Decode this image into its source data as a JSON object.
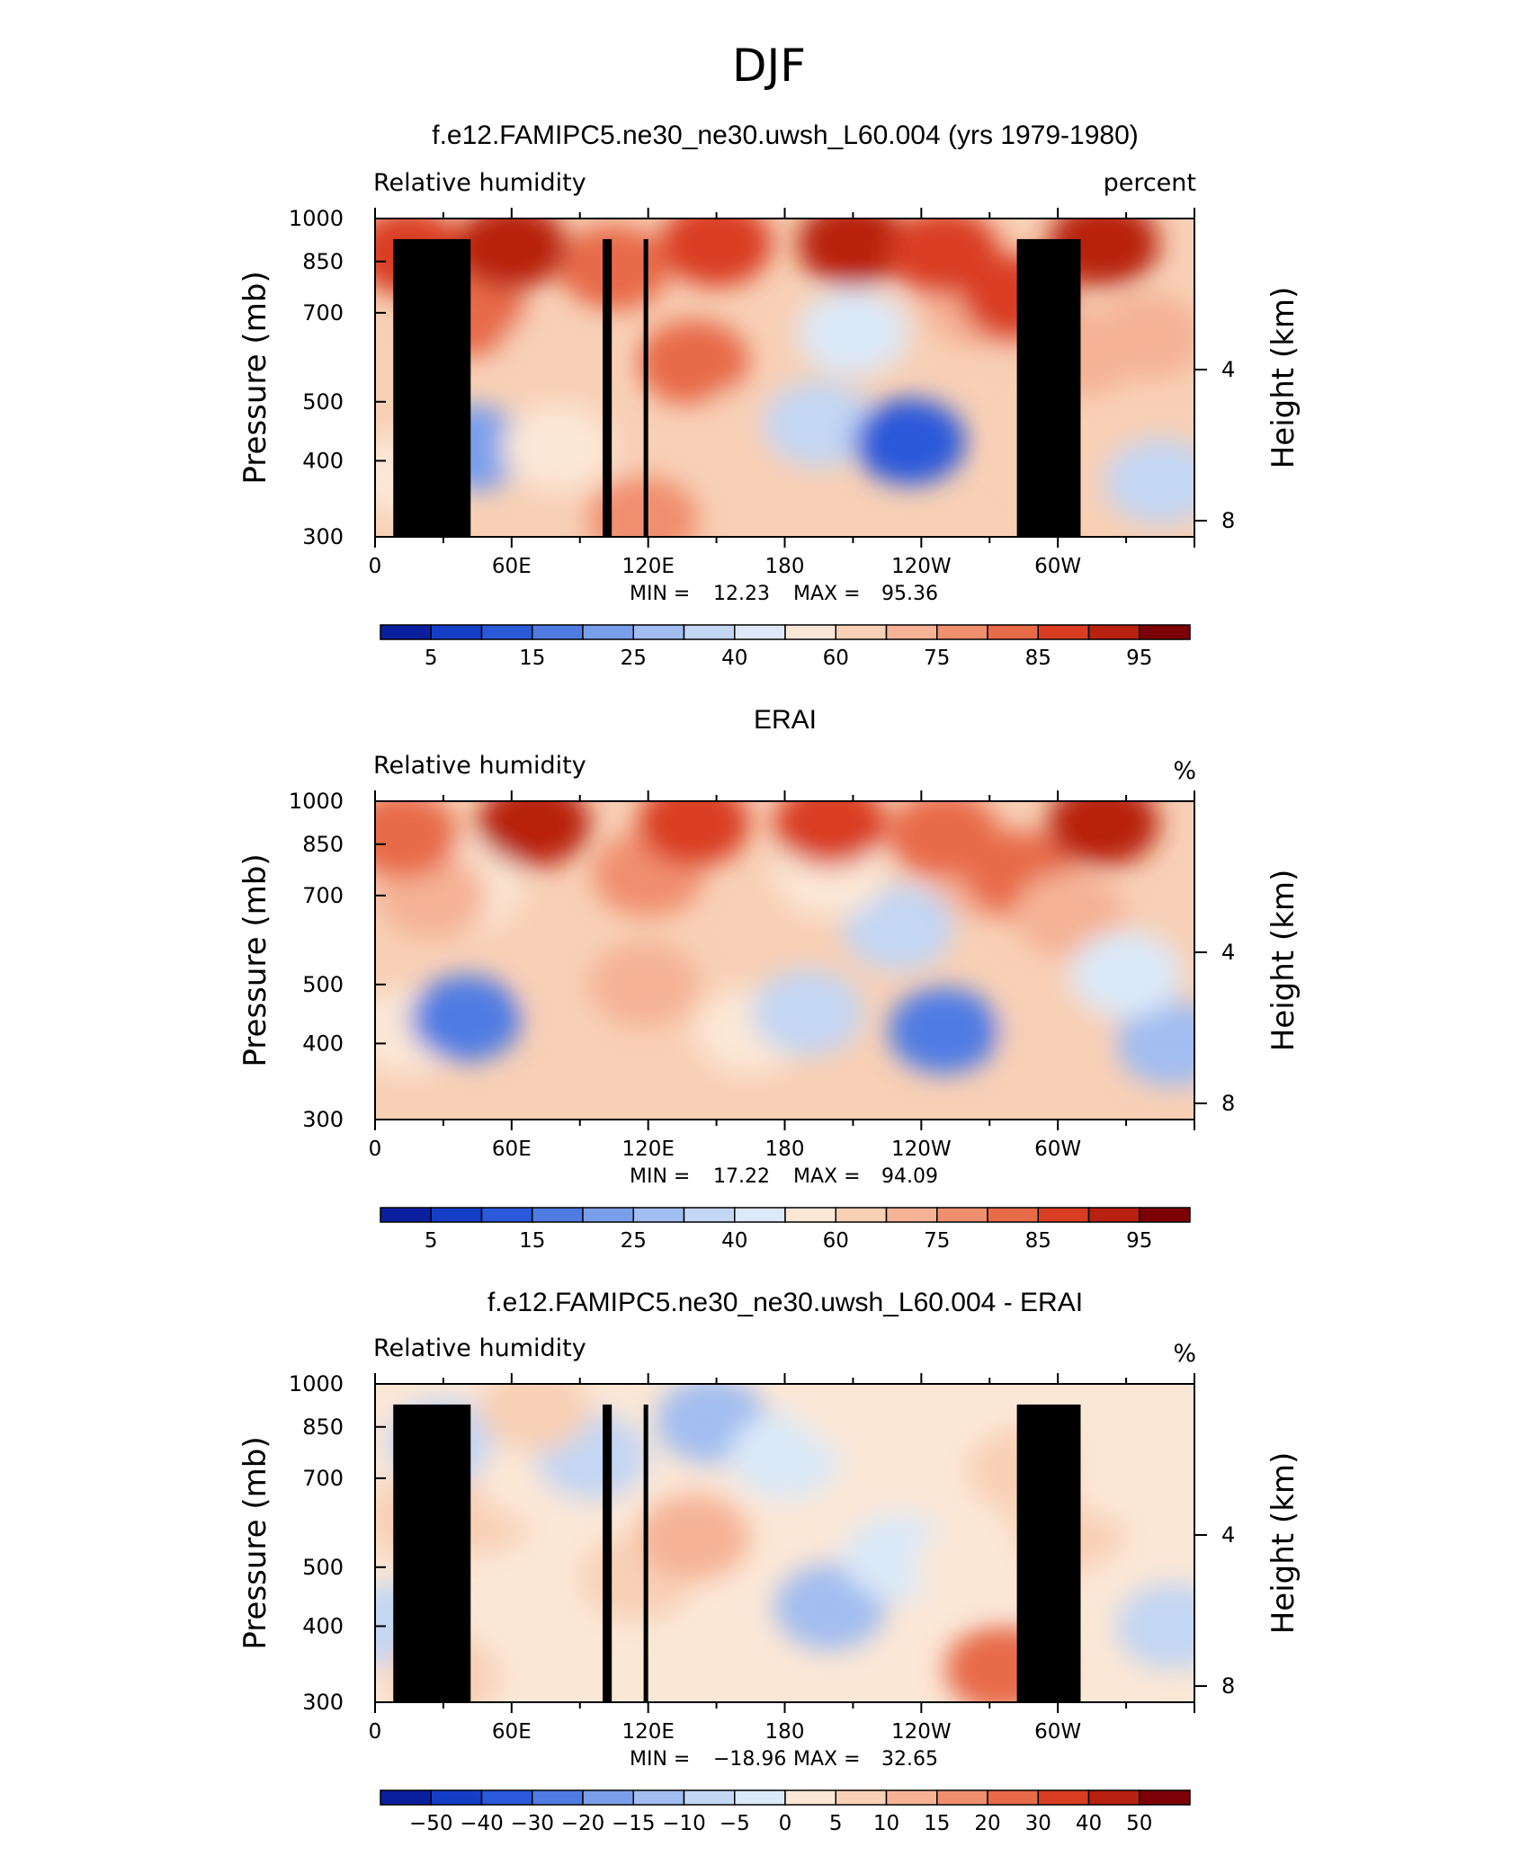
{
  "figure_title": "DJF",
  "xticks": [
    {
      "lon": 0,
      "label": "0"
    },
    {
      "lon": 60,
      "label": "60E"
    },
    {
      "lon": 120,
      "label": "120E"
    },
    {
      "lon": 180,
      "label": "180"
    },
    {
      "lon": 240,
      "label": "120W"
    },
    {
      "lon": 300,
      "label": "60W"
    }
  ],
  "pressure_ticks": [
    300,
    400,
    500,
    700,
    850,
    1000
  ],
  "height_ticks": [
    8,
    4
  ],
  "left_axis_label": "Pressure (mb)",
  "right_axis_label": "Height (km)",
  "chart_data": [
    {
      "type": "heatmap",
      "title": "f.e12.FAMIPC5.ne30_ne30.uwsh_L60.004 (yrs 1979-1980)",
      "left_label": "Relative humidity",
      "units": "percent",
      "stats": {
        "min_label": "MIN =",
        "min": "12.23",
        "max_label": "MAX =",
        "max": "95.36"
      },
      "xlim": [
        0,
        360
      ],
      "ylim": [
        1000,
        300
      ],
      "levels": [
        5,
        10,
        15,
        20,
        25,
        30,
        40,
        50,
        60,
        65,
        75,
        80,
        85,
        90,
        95
      ],
      "colorbar_labels": [
        "5",
        "15",
        "25",
        "40",
        "60",
        "75",
        "85",
        "95"
      ],
      "topography": true,
      "field": [
        {
          "lon": 15,
          "p": 380,
          "val": 52
        },
        {
          "lon": 42,
          "p": 420,
          "val": 22
        },
        {
          "lon": 42,
          "p": 700,
          "val": 82
        },
        {
          "lon": 15,
          "p": 880,
          "val": 85
        },
        {
          "lon": 80,
          "p": 420,
          "val": 58
        },
        {
          "lon": 80,
          "p": 600,
          "val": 62
        },
        {
          "lon": 118,
          "p": 320,
          "val": 78
        },
        {
          "lon": 140,
          "p": 580,
          "val": 82
        },
        {
          "lon": 105,
          "p": 830,
          "val": 84
        },
        {
          "lon": 165,
          "p": 450,
          "val": 62
        },
        {
          "lon": 195,
          "p": 460,
          "val": 30
        },
        {
          "lon": 235,
          "p": 430,
          "val": 12
        },
        {
          "lon": 210,
          "p": 650,
          "val": 42
        },
        {
          "lon": 265,
          "p": 720,
          "val": 72
        },
        {
          "lon": 282,
          "p": 740,
          "val": 88
        },
        {
          "lon": 300,
          "p": 420,
          "val": 62
        },
        {
          "lon": 310,
          "p": 600,
          "val": 70
        },
        {
          "lon": 345,
          "p": 370,
          "val": 32
        },
        {
          "lon": 340,
          "p": 640,
          "val": 65
        },
        {
          "lon": 60,
          "p": 900,
          "val": 91
        },
        {
          "lon": 150,
          "p": 910,
          "val": 88
        },
        {
          "lon": 210,
          "p": 910,
          "val": 91
        },
        {
          "lon": 320,
          "p": 910,
          "val": 92
        },
        {
          "lon": 250,
          "p": 880,
          "val": 86
        }
      ]
    },
    {
      "type": "heatmap",
      "title": "ERAI",
      "left_label": "Relative humidity",
      "units": "%",
      "stats": {
        "min_label": "MIN =",
        "min": "17.22",
        "max_label": "MAX =",
        "max": "94.09"
      },
      "xlim": [
        0,
        360
      ],
      "ylim": [
        1000,
        300
      ],
      "levels": [
        5,
        10,
        15,
        20,
        25,
        30,
        40,
        50,
        60,
        65,
        75,
        80,
        85,
        90,
        95
      ],
      "colorbar_labels": [
        "5",
        "15",
        "25",
        "40",
        "60",
        "75",
        "85",
        "95"
      ],
      "topography": false,
      "field": [
        {
          "lon": 15,
          "p": 420,
          "val": 50
        },
        {
          "lon": 40,
          "p": 440,
          "val": 18
        },
        {
          "lon": 40,
          "p": 720,
          "val": 55
        },
        {
          "lon": 25,
          "p": 700,
          "val": 72
        },
        {
          "lon": 12,
          "p": 880,
          "val": 84
        },
        {
          "lon": 90,
          "p": 500,
          "val": 64
        },
        {
          "lon": 118,
          "p": 500,
          "val": 66
        },
        {
          "lon": 120,
          "p": 760,
          "val": 76
        },
        {
          "lon": 165,
          "p": 420,
          "val": 58
        },
        {
          "lon": 190,
          "p": 450,
          "val": 32
        },
        {
          "lon": 250,
          "p": 420,
          "val": 18
        },
        {
          "lon": 230,
          "p": 620,
          "val": 38
        },
        {
          "lon": 200,
          "p": 760,
          "val": 50
        },
        {
          "lon": 270,
          "p": 750,
          "val": 70
        },
        {
          "lon": 283,
          "p": 760,
          "val": 84
        },
        {
          "lon": 300,
          "p": 430,
          "val": 60
        },
        {
          "lon": 305,
          "p": 650,
          "val": 66
        },
        {
          "lon": 350,
          "p": 400,
          "val": 28
        },
        {
          "lon": 330,
          "p": 520,
          "val": 45
        },
        {
          "lon": 70,
          "p": 920,
          "val": 90
        },
        {
          "lon": 140,
          "p": 920,
          "val": 88
        },
        {
          "lon": 200,
          "p": 920,
          "val": 87
        },
        {
          "lon": 320,
          "p": 920,
          "val": 90
        },
        {
          "lon": 250,
          "p": 880,
          "val": 80
        }
      ]
    },
    {
      "type": "heatmap",
      "title": "f.e12.FAMIPC5.ne30_ne30.uwsh_L60.004 - ERAI",
      "left_label": "Relative humidity",
      "units": "%",
      "stats": {
        "min_label": "MIN =",
        "min": "−18.96",
        "max_label": "MAX =",
        "max": "32.65"
      },
      "xlim": [
        0,
        360
      ],
      "ylim": [
        1000,
        300
      ],
      "levels": [
        -50,
        -40,
        -30,
        -20,
        -15,
        -10,
        -5,
        0,
        5,
        10,
        15,
        20,
        30,
        40,
        50
      ],
      "colorbar_labels": [
        "−50",
        "−40",
        "−30",
        "−20",
        "−15",
        "−10",
        "−5",
        "0",
        "5",
        "10",
        "15",
        "20",
        "30",
        "40",
        "50"
      ],
      "topography": true,
      "field": [
        {
          "lon": 10,
          "p": 400,
          "val": -8
        },
        {
          "lon": 30,
          "p": 330,
          "val": 6
        },
        {
          "lon": 20,
          "p": 600,
          "val": 6
        },
        {
          "lon": 45,
          "p": 620,
          "val": 5
        },
        {
          "lon": 30,
          "p": 800,
          "val": -6
        },
        {
          "lon": 70,
          "p": 700,
          "val": 3
        },
        {
          "lon": 95,
          "p": 760,
          "val": -8
        },
        {
          "lon": 115,
          "p": 480,
          "val": 8
        },
        {
          "lon": 140,
          "p": 560,
          "val": 12
        },
        {
          "lon": 148,
          "p": 870,
          "val": -13
        },
        {
          "lon": 200,
          "p": 430,
          "val": -14
        },
        {
          "lon": 230,
          "p": 520,
          "val": -5
        },
        {
          "lon": 180,
          "p": 760,
          "val": -2
        },
        {
          "lon": 210,
          "p": 920,
          "val": 4
        },
        {
          "lon": 262,
          "p": 500,
          "val": 4
        },
        {
          "lon": 275,
          "p": 340,
          "val": 26
        },
        {
          "lon": 285,
          "p": 720,
          "val": 8
        },
        {
          "lon": 305,
          "p": 580,
          "val": 6
        },
        {
          "lon": 350,
          "p": 400,
          "val": -8
        },
        {
          "lon": 330,
          "p": 700,
          "val": 3
        },
        {
          "lon": 70,
          "p": 910,
          "val": 5
        },
        {
          "lon": 330,
          "p": 900,
          "val": 3
        }
      ]
    }
  ],
  "colors": {
    "positive": [
      "#fbe7d6",
      "#f8d0b6",
      "#f5b295",
      "#f08f6e",
      "#e76a49",
      "#d93e22",
      "#b82010",
      "#7d0006"
    ],
    "negative": [
      "#dce9f8",
      "#c3d6f3",
      "#a2bdf0",
      "#7a9fea",
      "#4f7be3",
      "#2a59d9",
      "#153ec7",
      "#0a1f9e"
    ],
    "topography": "#000000"
  }
}
